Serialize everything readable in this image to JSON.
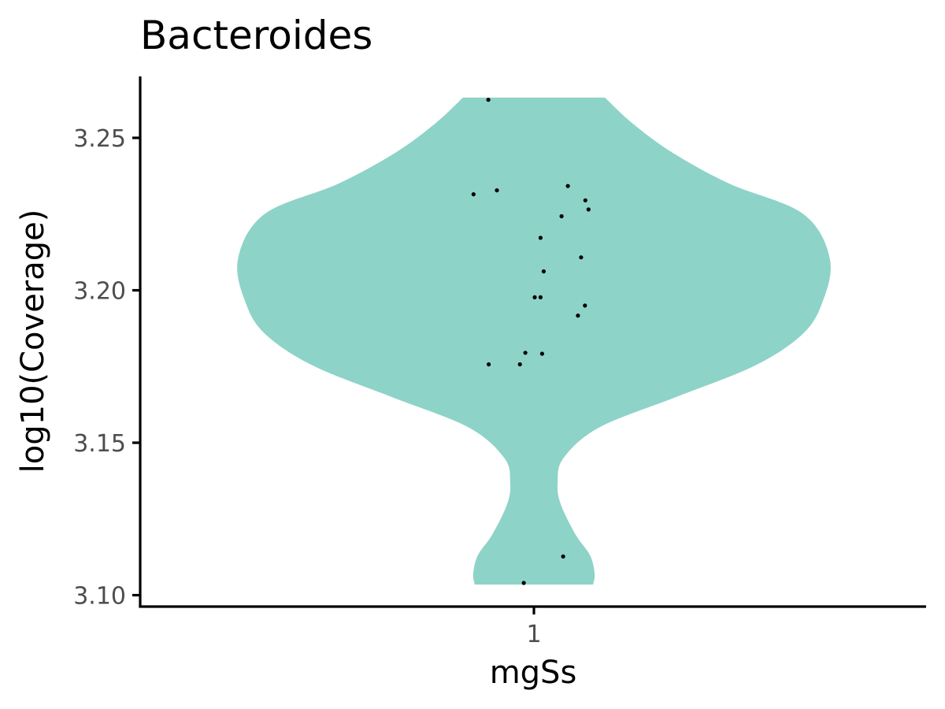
{
  "chart_data": {
    "type": "violin",
    "title": "Bacteroides",
    "xlabel": "mgSs",
    "ylabel": "log10(Coverage)",
    "categories": [
      "1"
    ],
    "ylim": [
      3.096,
      3.27
    ],
    "yticks": [
      "3.10",
      "3.15",
      "3.20",
      "3.25"
    ],
    "ytick_values": [
      3.1,
      3.15,
      3.2,
      3.25
    ],
    "grid": false,
    "legend": "none",
    "fill_color": "#8ed3c7",
    "point_color": "#000000",
    "violin_range": [
      3.1035,
      3.2632
    ],
    "violin_width_profile": [
      {
        "y": 3.1035,
        "w": 0.2
      },
      {
        "y": 3.107,
        "w": 0.205
      },
      {
        "y": 3.113,
        "w": 0.19
      },
      {
        "y": 3.12,
        "w": 0.14
      },
      {
        "y": 3.13,
        "w": 0.09
      },
      {
        "y": 3.137,
        "w": 0.08
      },
      {
        "y": 3.145,
        "w": 0.1
      },
      {
        "y": 3.155,
        "w": 0.22
      },
      {
        "y": 3.165,
        "w": 0.48
      },
      {
        "y": 3.175,
        "w": 0.74
      },
      {
        "y": 3.185,
        "w": 0.9
      },
      {
        "y": 3.195,
        "w": 0.97
      },
      {
        "y": 3.21,
        "w": 1.0
      },
      {
        "y": 3.225,
        "w": 0.91
      },
      {
        "y": 3.235,
        "w": 0.66
      },
      {
        "y": 3.245,
        "w": 0.47
      },
      {
        "y": 3.255,
        "w": 0.33
      },
      {
        "y": 3.2632,
        "w": 0.24
      }
    ],
    "points": [
      {
        "x": 0.883,
        "y": 3.2625
      },
      {
        "x": 0.845,
        "y": 3.2315
      },
      {
        "x": 0.905,
        "y": 3.2328
      },
      {
        "x": 1.087,
        "y": 3.2342
      },
      {
        "x": 1.132,
        "y": 3.2295
      },
      {
        "x": 1.14,
        "y": 3.2265
      },
      {
        "x": 1.071,
        "y": 3.2243
      },
      {
        "x": 1.017,
        "y": 3.2172
      },
      {
        "x": 1.121,
        "y": 3.2108
      },
      {
        "x": 1.025,
        "y": 3.2062
      },
      {
        "x": 1.002,
        "y": 3.1977
      },
      {
        "x": 1.017,
        "y": 3.1977
      },
      {
        "x": 1.131,
        "y": 3.195
      },
      {
        "x": 1.113,
        "y": 3.1917
      },
      {
        "x": 0.978,
        "y": 3.1795
      },
      {
        "x": 1.021,
        "y": 3.1792
      },
      {
        "x": 0.884,
        "y": 3.1757
      },
      {
        "x": 0.964,
        "y": 3.1757
      },
      {
        "x": 1.075,
        "y": 3.1127
      },
      {
        "x": 0.974,
        "y": 3.104
      }
    ]
  }
}
